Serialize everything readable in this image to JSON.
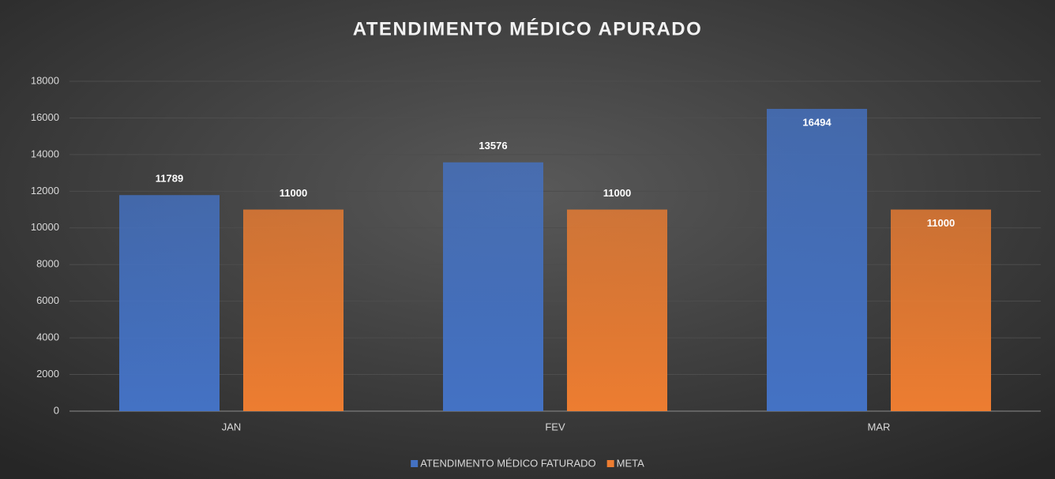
{
  "chart_data": {
    "type": "bar",
    "title": "ATENDIMENTO MÉDICO APURADO",
    "categories": [
      "JAN",
      "FEV",
      "MAR"
    ],
    "series": [
      {
        "name": "ATENDIMENTO MÉDICO FATURADO",
        "color": "#4472c4",
        "values": [
          11789,
          13576,
          16494
        ]
      },
      {
        "name": "META",
        "color": "#ed7d31",
        "values": [
          11000,
          11000,
          11000
        ]
      }
    ],
    "ylim": [
      0,
      18000
    ],
    "yticks": [
      0,
      2000,
      4000,
      6000,
      8000,
      10000,
      12000,
      14000,
      16000,
      18000
    ],
    "grid": true,
    "legend": "bottom"
  }
}
